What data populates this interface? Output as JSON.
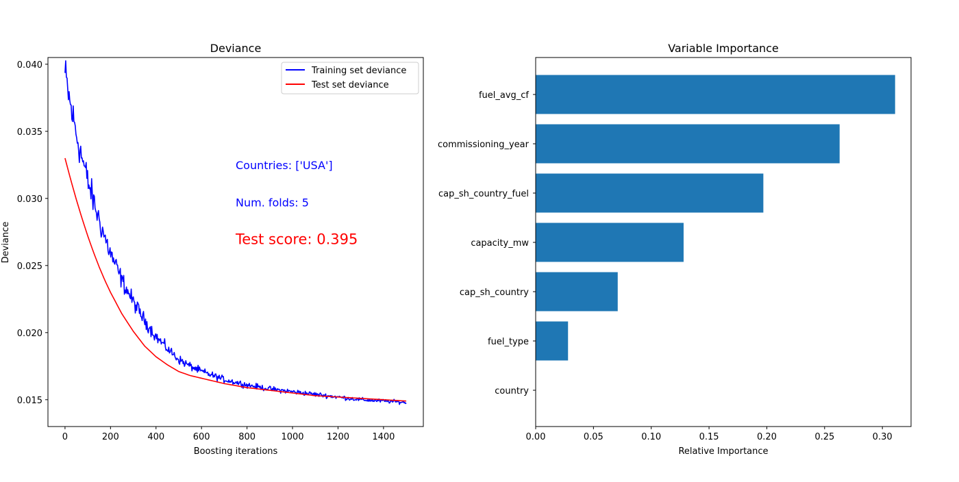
{
  "chart_data": [
    {
      "type": "line",
      "title": "Deviance",
      "xlabel": "Boosting iterations",
      "ylabel": "Deviance",
      "xlim": [
        -75,
        1575
      ],
      "ylim": [
        0.013,
        0.0405
      ],
      "xticks": [
        0,
        200,
        400,
        600,
        800,
        1000,
        1200,
        1400
      ],
      "xtick_labels": [
        "0",
        "200",
        "400",
        "600",
        "800",
        "1000",
        "1200",
        "1400"
      ],
      "yticks": [
        0.015,
        0.02,
        0.025,
        0.03,
        0.035,
        0.04
      ],
      "ytick_labels": [
        "0.015",
        "0.020",
        "0.025",
        "0.030",
        "0.035",
        "0.040"
      ],
      "legend_position": "top-right",
      "grid": false,
      "series": [
        {
          "name": "Training set deviance",
          "color": "#0000ff",
          "noisy": true,
          "x": [
            0,
            25,
            50,
            75,
            100,
            125,
            150,
            175,
            200,
            250,
            300,
            350,
            400,
            450,
            500,
            550,
            600,
            650,
            700,
            800,
            900,
            1000,
            1100,
            1200,
            1300,
            1400,
            1500
          ],
          "y": [
            0.0392,
            0.0368,
            0.0348,
            0.033,
            0.0313,
            0.0298,
            0.0284,
            0.0271,
            0.0259,
            0.0239,
            0.0223,
            0.0209,
            0.0197,
            0.0188,
            0.018,
            0.0175,
            0.0171,
            0.0168,
            0.0165,
            0.0161,
            0.0158,
            0.0156,
            0.0154,
            0.0152,
            0.015,
            0.0149,
            0.0148
          ]
        },
        {
          "name": "Test set deviance",
          "color": "#ff0000",
          "noisy": false,
          "x": [
            0,
            25,
            50,
            75,
            100,
            125,
            150,
            175,
            200,
            250,
            300,
            350,
            400,
            450,
            500,
            550,
            600,
            650,
            700,
            800,
            900,
            1000,
            1100,
            1200,
            1300,
            1400,
            1500
          ],
          "y": [
            0.033,
            0.0314,
            0.0299,
            0.0285,
            0.0272,
            0.026,
            0.0249,
            0.0239,
            0.023,
            0.0214,
            0.0201,
            0.019,
            0.0182,
            0.0176,
            0.0171,
            0.0168,
            0.0166,
            0.0164,
            0.0162,
            0.0159,
            0.0157,
            0.0155,
            0.0153,
            0.0152,
            0.0151,
            0.015,
            0.0149
          ]
        }
      ],
      "annotations": [
        {
          "text": "Countries: ['USA']",
          "x": 750,
          "y": 0.0325,
          "color": "#0000ff",
          "size": "medium"
        },
        {
          "text": "Num. folds: 5",
          "x": 750,
          "y": 0.0297,
          "color": "#0000ff",
          "size": "medium"
        },
        {
          "text": "Test score: 0.395",
          "x": 750,
          "y": 0.0269,
          "color": "#ff0000",
          "size": "large"
        }
      ]
    },
    {
      "type": "bar",
      "orientation": "horizontal",
      "title": "Variable Importance",
      "xlabel": "Relative Importance",
      "ylabel": "",
      "xlim": [
        0,
        0.3248
      ],
      "xticks": [
        0,
        0.05,
        0.1,
        0.15,
        0.2,
        0.25,
        0.3
      ],
      "xtick_labels": [
        "0.00",
        "0.05",
        "0.10",
        "0.15",
        "0.20",
        "0.25",
        "0.30"
      ],
      "color": "#1f77b4",
      "grid": false,
      "categories": [
        "fuel_avg_cf",
        "commissioning_year",
        "cap_sh_country_fuel",
        "capacity_mw",
        "cap_sh_country",
        "fuel_type",
        "country"
      ],
      "values": [
        0.311,
        0.263,
        0.197,
        0.128,
        0.071,
        0.028,
        0.0
      ]
    }
  ]
}
